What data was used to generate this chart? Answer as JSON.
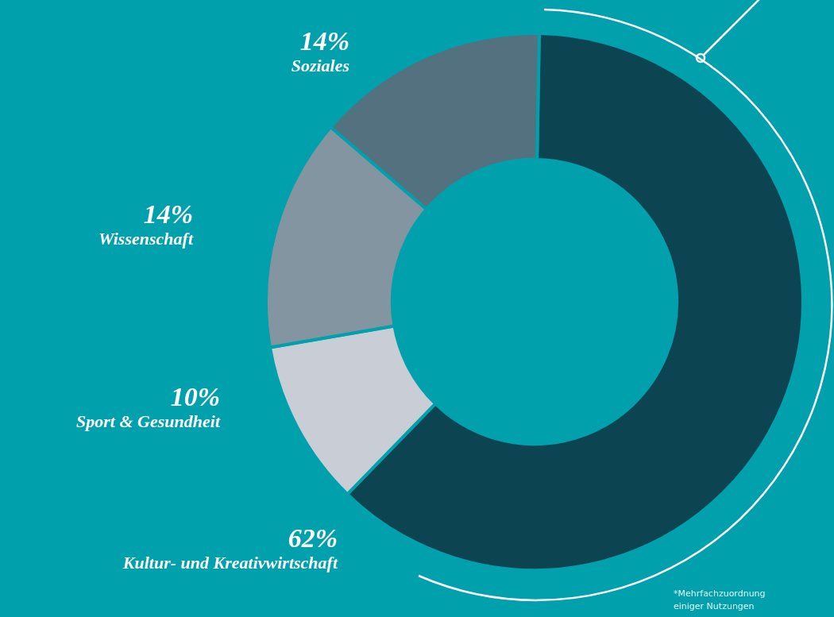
{
  "chart_data": {
    "type": "donut",
    "categories": [
      "Kultur- und Kreativwirtschaft",
      "Sport & Gesundheit",
      "Wissenschaft",
      "Soziales"
    ],
    "values": [
      62,
      10,
      14,
      14
    ],
    "colors": [
      "#0d4452",
      "#c9ced6",
      "#8395a0",
      "#53717e"
    ],
    "value_labels": [
      "62%",
      "10%",
      "14%",
      "14%"
    ],
    "legend": false,
    "annotations": [
      "*Mehrfachzuordnung einiger Nutzungen"
    ]
  }
}
